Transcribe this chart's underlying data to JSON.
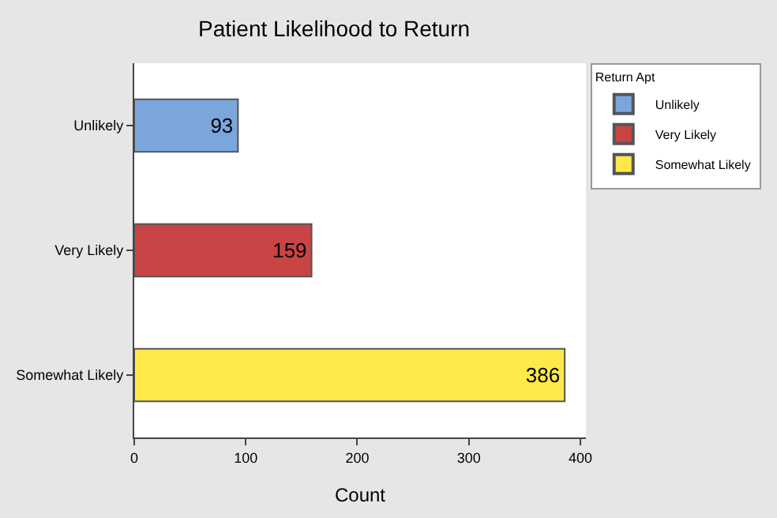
{
  "chart_data": {
    "type": "bar",
    "orientation": "horizontal",
    "title": "Patient Likelihood to Return",
    "xlabel": "Count",
    "categories": [
      "Unlikely",
      "Very Likely",
      "Somewhat Likely"
    ],
    "series": [
      {
        "name": "Unlikely",
        "color": "#7aa6dc",
        "values": [
          93,
          null,
          null
        ]
      },
      {
        "name": "Very Likely",
        "color": "#c94444",
        "values": [
          null,
          159,
          null
        ]
      },
      {
        "name": "Somewhat Likely",
        "color": "#ffe84a",
        "values": [
          null,
          null,
          386
        ]
      }
    ],
    "legend_title": "Return Apt",
    "legend": "top right",
    "data_labels": true,
    "xlim": [
      0,
      405
    ],
    "xticks": [
      0,
      100,
      200,
      300,
      400
    ]
  }
}
